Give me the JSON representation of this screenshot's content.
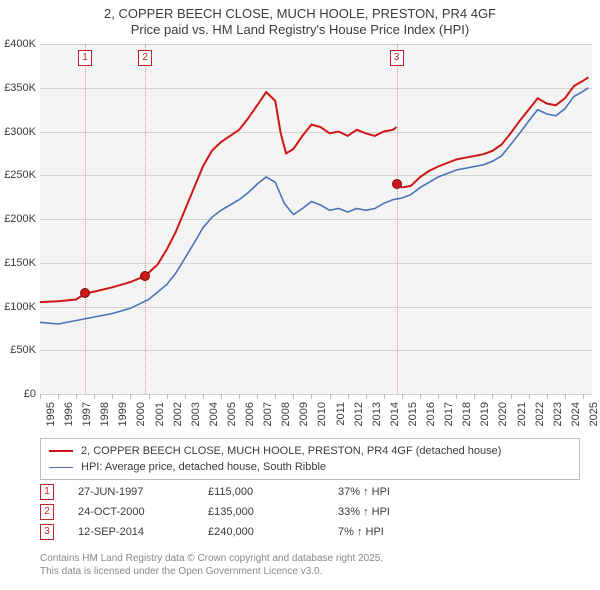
{
  "title": {
    "line1": "2, COPPER BEECH CLOSE, MUCH HOOLE, PRESTON, PR4 4GF",
    "line2": "Price paid vs. HM Land Registry's House Price Index (HPI)",
    "fontsize": 13,
    "color": "#3b3b3b"
  },
  "chart": {
    "type": "line",
    "background_color": "#f4f4f4",
    "grid_color": "#d3d3d3",
    "x": {
      "min": 1995,
      "max": 2025.5,
      "ticks": [
        1995,
        1996,
        1997,
        1998,
        1999,
        2000,
        2001,
        2002,
        2003,
        2004,
        2005,
        2006,
        2007,
        2008,
        2009,
        2010,
        2011,
        2012,
        2013,
        2014,
        2015,
        2016,
        2017,
        2018,
        2019,
        2020,
        2021,
        2022,
        2023,
        2024,
        2025
      ],
      "label_fontsize": 11,
      "label_rotation_deg": -90
    },
    "y": {
      "min": 0,
      "max": 400000,
      "tick_step": 50000,
      "tick_labels": [
        "£0",
        "£50K",
        "£100K",
        "£150K",
        "£200K",
        "£250K",
        "£300K",
        "£350K",
        "£400K"
      ],
      "label_fontsize": 11
    },
    "series": [
      {
        "id": "price_paid",
        "label": "2, COPPER BEECH CLOSE, MUCH HOOLE, PRESTON, PR4 4GF (detached house)",
        "color": "#cf1717",
        "line_width": 2,
        "data": [
          [
            1995.0,
            105000
          ],
          [
            1996.0,
            106000
          ],
          [
            1997.0,
            108000
          ],
          [
            1997.49,
            115000
          ],
          [
            1998.0,
            117000
          ],
          [
            1999.0,
            122000
          ],
          [
            2000.0,
            128000
          ],
          [
            2000.81,
            135000
          ],
          [
            2001.5,
            148000
          ],
          [
            2002.0,
            165000
          ],
          [
            2002.5,
            185000
          ],
          [
            2003.0,
            210000
          ],
          [
            2003.5,
            235000
          ],
          [
            2004.0,
            260000
          ],
          [
            2004.5,
            278000
          ],
          [
            2005.0,
            288000
          ],
          [
            2005.5,
            295000
          ],
          [
            2006.0,
            302000
          ],
          [
            2006.5,
            315000
          ],
          [
            2007.0,
            330000
          ],
          [
            2007.5,
            345000
          ],
          [
            2008.0,
            335000
          ],
          [
            2008.3,
            298000
          ],
          [
            2008.6,
            275000
          ],
          [
            2009.0,
            280000
          ],
          [
            2009.5,
            295000
          ],
          [
            2010.0,
            308000
          ],
          [
            2010.5,
            305000
          ],
          [
            2011.0,
            298000
          ],
          [
            2011.5,
            300000
          ],
          [
            2012.0,
            295000
          ],
          [
            2012.5,
            302000
          ],
          [
            2013.0,
            298000
          ],
          [
            2013.5,
            295000
          ],
          [
            2014.0,
            300000
          ],
          [
            2014.5,
            302000
          ],
          [
            2014.7,
            305000
          ]
        ],
        "data2": [
          [
            2014.7,
            240000
          ],
          [
            2015.0,
            236000
          ],
          [
            2015.5,
            238000
          ],
          [
            2016.0,
            248000
          ],
          [
            2016.5,
            255000
          ],
          [
            2017.0,
            260000
          ],
          [
            2017.5,
            264000
          ],
          [
            2018.0,
            268000
          ],
          [
            2018.5,
            270000
          ],
          [
            2019.0,
            272000
          ],
          [
            2019.5,
            274000
          ],
          [
            2020.0,
            278000
          ],
          [
            2020.5,
            285000
          ],
          [
            2021.0,
            298000
          ],
          [
            2021.5,
            312000
          ],
          [
            2022.0,
            325000
          ],
          [
            2022.5,
            338000
          ],
          [
            2023.0,
            332000
          ],
          [
            2023.5,
            330000
          ],
          [
            2024.0,
            338000
          ],
          [
            2024.5,
            352000
          ],
          [
            2025.0,
            358000
          ],
          [
            2025.3,
            362000
          ]
        ]
      },
      {
        "id": "hpi",
        "label": "HPI: Average price, detached house, South Ribble",
        "color": "#4a74b8",
        "line_width": 1.6,
        "data": [
          [
            1995.0,
            82000
          ],
          [
            1996.0,
            80000
          ],
          [
            1997.0,
            84000
          ],
          [
            1998.0,
            88000
          ],
          [
            1999.0,
            92000
          ],
          [
            2000.0,
            98000
          ],
          [
            2001.0,
            108000
          ],
          [
            2002.0,
            125000
          ],
          [
            2002.5,
            138000
          ],
          [
            2003.0,
            155000
          ],
          [
            2003.5,
            172000
          ],
          [
            2004.0,
            190000
          ],
          [
            2004.5,
            202000
          ],
          [
            2005.0,
            210000
          ],
          [
            2005.5,
            216000
          ],
          [
            2006.0,
            222000
          ],
          [
            2006.5,
            230000
          ],
          [
            2007.0,
            240000
          ],
          [
            2007.5,
            248000
          ],
          [
            2008.0,
            242000
          ],
          [
            2008.5,
            218000
          ],
          [
            2009.0,
            205000
          ],
          [
            2009.5,
            212000
          ],
          [
            2010.0,
            220000
          ],
          [
            2010.5,
            216000
          ],
          [
            2011.0,
            210000
          ],
          [
            2011.5,
            212000
          ],
          [
            2012.0,
            208000
          ],
          [
            2012.5,
            212000
          ],
          [
            2013.0,
            210000
          ],
          [
            2013.5,
            212000
          ],
          [
            2014.0,
            218000
          ],
          [
            2014.5,
            222000
          ],
          [
            2015.0,
            224000
          ],
          [
            2015.5,
            228000
          ],
          [
            2016.0,
            236000
          ],
          [
            2016.5,
            242000
          ],
          [
            2017.0,
            248000
          ],
          [
            2017.5,
            252000
          ],
          [
            2018.0,
            256000
          ],
          [
            2018.5,
            258000
          ],
          [
            2019.0,
            260000
          ],
          [
            2019.5,
            262000
          ],
          [
            2020.0,
            266000
          ],
          [
            2020.5,
            272000
          ],
          [
            2021.0,
            285000
          ],
          [
            2021.5,
            298000
          ],
          [
            2022.0,
            312000
          ],
          [
            2022.5,
            325000
          ],
          [
            2023.0,
            320000
          ],
          [
            2023.5,
            318000
          ],
          [
            2024.0,
            326000
          ],
          [
            2024.5,
            340000
          ],
          [
            2025.0,
            346000
          ],
          [
            2025.3,
            350000
          ]
        ]
      }
    ],
    "sale_markers": [
      {
        "num": "1",
        "year": 1997.49,
        "price": 115000
      },
      {
        "num": "2",
        "year": 2000.81,
        "price": 135000
      },
      {
        "num": "3",
        "year": 2014.7,
        "price": 240000
      }
    ],
    "marker_box_color": "#c32424",
    "marker_line_color": "#cc9999",
    "sale_dot_fill": "#cf1717",
    "sale_dot_stroke": "#7a0d0d"
  },
  "legend": {
    "border_color": "#bcbcbc",
    "fontsize": 11
  },
  "sales_table": {
    "rows": [
      {
        "num": "1",
        "date": "27-JUN-1997",
        "price": "£115,000",
        "hpi": "37% ↑ HPI"
      },
      {
        "num": "2",
        "date": "24-OCT-2000",
        "price": "£135,000",
        "hpi": "33% ↑ HPI"
      },
      {
        "num": "3",
        "date": "12-SEP-2014",
        "price": "£240,000",
        "hpi": "7% ↑ HPI"
      }
    ],
    "fontsize": 11
  },
  "attribution": {
    "line1": "Contains HM Land Registry data © Crown copyright and database right 2025.",
    "line2": "This data is licensed under the Open Government Licence v3.0.",
    "color": "#888888",
    "fontsize": 10
  }
}
